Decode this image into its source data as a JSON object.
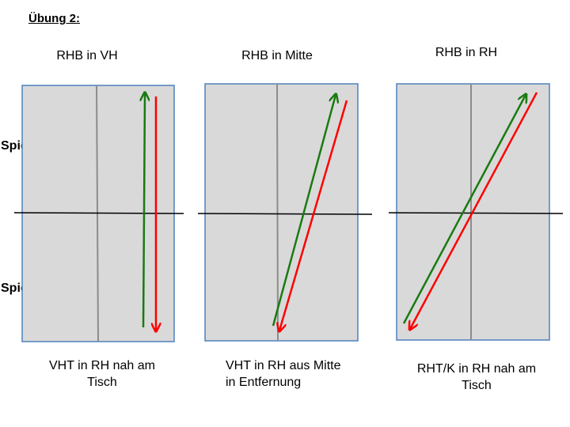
{
  "title": "Übung 2:",
  "players": {
    "top": "Spieler B",
    "bottom": "Spieler A"
  },
  "colors": {
    "table_fill": "#d9d9d9",
    "table_border": "#4f81bd",
    "center_line": "#8c8c8c",
    "net": "#000000",
    "arrow_green": "#1a7a12",
    "arrow_red": "#ff0000"
  },
  "diagrams": [
    {
      "heading": "RHB in VH",
      "caption": [
        "VHT in RH nah am",
        "Tisch"
      ]
    },
    {
      "heading": "RHB in Mitte",
      "caption": [
        "VHT in RH aus Mitte",
        "in Entfernung"
      ]
    },
    {
      "heading": "RHB in RH",
      "caption": [
        "RHT/K in RH nah am",
        "Tisch"
      ]
    }
  ]
}
